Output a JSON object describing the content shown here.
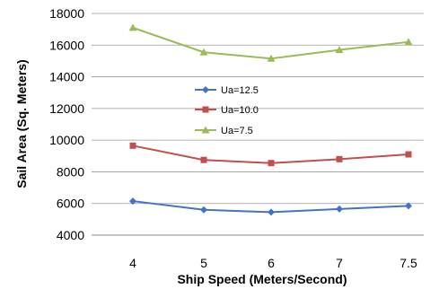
{
  "chart_data": {
    "type": "line",
    "title": "",
    "xlabel": "Ship Speed (Meters/Second)",
    "ylabel": "Sail Area (Sq. Meters)",
    "categories": [
      "4",
      "5",
      "6",
      "7",
      "7.5"
    ],
    "ylim": [
      4000,
      18000
    ],
    "yticks": [
      4000,
      6000,
      8000,
      10000,
      12000,
      14000,
      16000,
      18000
    ],
    "grid": "horizontal",
    "legend_position": "center-left",
    "series": [
      {
        "name": "Ua=12.5",
        "color": "#4472C4",
        "marker": "diamond",
        "values": [
          6150,
          5600,
          5450,
          5650,
          5850
        ]
      },
      {
        "name": "Ua=10.0",
        "color": "#C0504D",
        "marker": "square",
        "values": [
          9650,
          8750,
          8550,
          8800,
          9100
        ]
      },
      {
        "name": "Ua=7.5",
        "color": "#9BBB59",
        "marker": "triangle",
        "values": [
          17100,
          15550,
          15150,
          15700,
          16200
        ]
      }
    ]
  }
}
